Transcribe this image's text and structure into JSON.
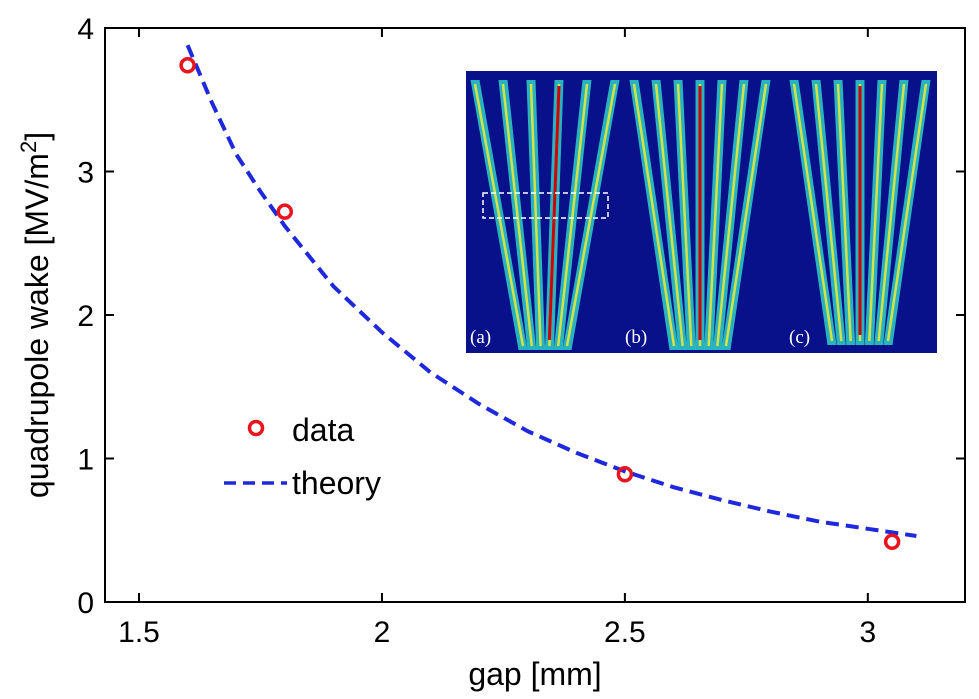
{
  "chart_data": {
    "type": "scatter",
    "title": "",
    "xlabel": "gap [mm]",
    "ylabel_main": "quadrupole wake [MV/m",
    "ylabel_sup": "2",
    "ylabel_close": "]",
    "xlim": [
      1.43,
      3.2
    ],
    "ylim": [
      0,
      4
    ],
    "xticks": [
      1.5,
      2,
      2.5,
      3
    ],
    "xtick_labels": [
      "1.5",
      "2",
      "2.5",
      "3"
    ],
    "yticks": [
      0,
      1,
      2,
      3,
      4
    ],
    "ytick_labels": [
      "0",
      "1",
      "2",
      "3",
      "4"
    ],
    "series": [
      {
        "name": "data",
        "kind": "markers",
        "color": "#e8141e",
        "x": [
          1.6,
          1.8,
          2.5,
          3.05
        ],
        "y": [
          3.74,
          2.72,
          0.89,
          0.42
        ]
      },
      {
        "name": "theory",
        "kind": "dashed-line",
        "color": "#1e28dc",
        "x": [
          1.6,
          1.65,
          1.7,
          1.75,
          1.8,
          1.9,
          2.0,
          2.1,
          2.2,
          2.3,
          2.4,
          2.5,
          2.6,
          2.7,
          2.8,
          2.9,
          3.0,
          3.1
        ],
        "y": [
          3.88,
          3.48,
          3.12,
          2.86,
          2.62,
          2.2,
          1.88,
          1.6,
          1.38,
          1.19,
          1.04,
          0.91,
          0.8,
          0.71,
          0.63,
          0.56,
          0.51,
          0.46
        ]
      }
    ],
    "legend": {
      "placement": "middle-left",
      "items": [
        "data",
        "theory"
      ]
    },
    "inset": {
      "description_labels": [
        "(a)",
        "(b)",
        "(c)"
      ],
      "background_color": "#08108a"
    }
  }
}
